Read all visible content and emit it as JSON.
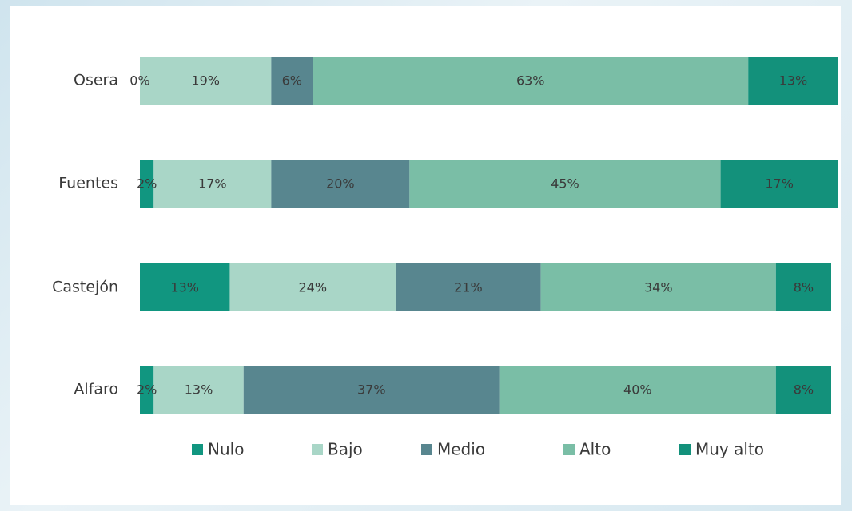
{
  "chart_data": {
    "type": "stacked_bar_horizontal",
    "categories": [
      "Osera",
      "Fuentes",
      "Castejón",
      "Alfaro"
    ],
    "xlim": [
      0,
      100
    ],
    "legend": "bottom",
    "series": [
      {
        "name": "Nulo",
        "color": "#119680",
        "values": [
          0,
          2,
          13,
          2
        ],
        "value_labels": [
          "0%",
          "2%",
          "13%",
          "2%"
        ]
      },
      {
        "name": "Bajo",
        "color": "#a9d6c7",
        "values": [
          19,
          17,
          24,
          13
        ],
        "value_labels": [
          "19%",
          "17%",
          "24%",
          "13%"
        ]
      },
      {
        "name": "Medio",
        "color": "#58868f",
        "values": [
          6,
          20,
          21,
          37
        ],
        "value_labels": [
          "6%",
          "20%",
          "21%",
          "37%"
        ]
      },
      {
        "name": "Alto",
        "color": "#7abea6",
        "values": [
          63,
          45,
          34,
          40
        ],
        "value_labels": [
          "63%",
          "45%",
          "34%",
          "40%"
        ]
      },
      {
        "name": "Muy alto",
        "color": "#13917b",
        "values": [
          13,
          17,
          8,
          8
        ],
        "value_labels": [
          "13%",
          "17%",
          "8%",
          "8%"
        ]
      }
    ]
  }
}
